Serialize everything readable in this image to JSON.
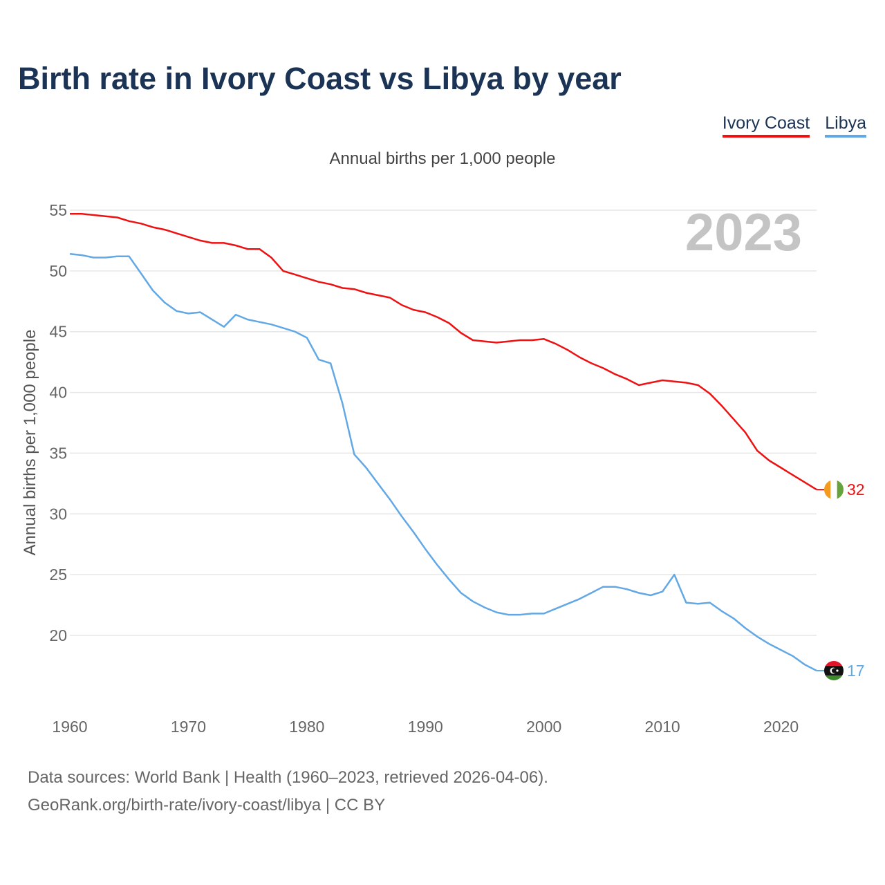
{
  "header": {
    "title": "Birth rate in Ivory Coast vs Libya by year",
    "subtitle": "Annual births per 1,000 people"
  },
  "legend": [
    {
      "label": "Ivory Coast",
      "color": "#ee1111"
    },
    {
      "label": "Libya",
      "color": "#62a8e5"
    }
  ],
  "footer": {
    "source_line1": "Data sources: World Bank | Health (1960–2023, retrieved 2026-04-06).",
    "source_line2": "GeoRank.org/birth-rate/ivory-coast/libya | CC BY"
  },
  "chart_data": {
    "type": "line",
    "title": "Birth rate in Ivory Coast vs Libya by year",
    "ylabel": "Annual births per 1,000 people",
    "xlabel": "",
    "year_display": "2023",
    "xlim": [
      1960,
      2023
    ],
    "ylim": [
      15,
      56.5
    ],
    "yticks": [
      20,
      25,
      30,
      35,
      40,
      45,
      50,
      55
    ],
    "xticks": [
      1960,
      1970,
      1980,
      1990,
      2000,
      2010,
      2020
    ],
    "grid": true,
    "legend_position": "top-right",
    "x": [
      1960,
      1961,
      1962,
      1963,
      1964,
      1965,
      1966,
      1967,
      1968,
      1969,
      1970,
      1971,
      1972,
      1973,
      1974,
      1975,
      1976,
      1977,
      1978,
      1979,
      1980,
      1981,
      1982,
      1983,
      1984,
      1985,
      1986,
      1987,
      1988,
      1989,
      1990,
      1991,
      1992,
      1993,
      1994,
      1995,
      1996,
      1997,
      1998,
      1999,
      2000,
      2001,
      2002,
      2003,
      2004,
      2005,
      2006,
      2007,
      2008,
      2009,
      2010,
      2011,
      2012,
      2013,
      2014,
      2015,
      2016,
      2017,
      2018,
      2019,
      2020,
      2021,
      2022,
      2023
    ],
    "series": [
      {
        "name": "Ivory Coast",
        "color": "#ee1111",
        "end_label": "32",
        "values": [
          54.7,
          54.7,
          54.6,
          54.5,
          54.4,
          54.1,
          53.9,
          53.6,
          53.4,
          53.1,
          52.8,
          52.5,
          52.3,
          52.3,
          52.1,
          51.8,
          51.8,
          51.1,
          50.0,
          49.7,
          49.4,
          49.1,
          48.9,
          48.6,
          48.5,
          48.2,
          48.0,
          47.8,
          47.2,
          46.8,
          46.6,
          46.2,
          45.7,
          44.9,
          44.3,
          44.2,
          44.1,
          44.2,
          44.3,
          44.3,
          44.4,
          44.0,
          43.5,
          42.9,
          42.4,
          42.0,
          41.5,
          41.1,
          40.6,
          40.8,
          41.0,
          40.9,
          40.8,
          40.6,
          39.9,
          38.9,
          37.8,
          36.7,
          35.2,
          34.4,
          33.8,
          33.2,
          32.6,
          32.0
        ]
      },
      {
        "name": "Libya",
        "color": "#62a8e5",
        "end_label": "17",
        "values": [
          51.4,
          51.3,
          51.1,
          51.1,
          51.2,
          51.2,
          49.8,
          48.4,
          47.4,
          46.7,
          46.5,
          46.6,
          46.0,
          45.4,
          46.4,
          46.0,
          45.8,
          45.6,
          45.3,
          45.0,
          44.5,
          42.7,
          42.4,
          39.1,
          34.9,
          33.8,
          32.5,
          31.2,
          29.8,
          28.5,
          27.1,
          25.8,
          24.6,
          23.5,
          22.8,
          22.3,
          21.9,
          21.7,
          21.7,
          21.8,
          21.8,
          22.2,
          22.6,
          23.0,
          23.5,
          24.0,
          24.0,
          23.8,
          23.5,
          23.3,
          23.6,
          25.0,
          22.7,
          22.6,
          22.7,
          22.0,
          21.4,
          20.6,
          19.9,
          19.3,
          18.8,
          18.3,
          17.6,
          17.1
        ]
      }
    ]
  }
}
